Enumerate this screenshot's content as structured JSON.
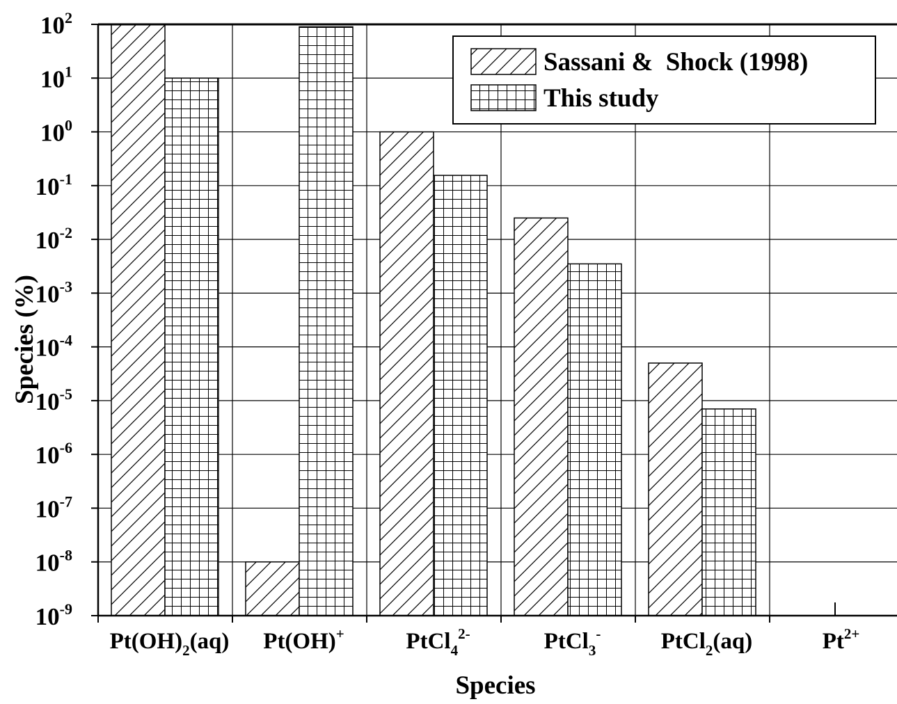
{
  "chart_data": {
    "type": "bar",
    "xlabel": "Species",
    "ylabel": "Species (%)",
    "yscale": "log",
    "ylim": [
      1e-09,
      100
    ],
    "grid": true,
    "legend_position": "top-right",
    "categories": [
      {
        "base": "Pt(OH)",
        "sub": "2",
        "sup": "",
        "tail": "(aq)"
      },
      {
        "base": "Pt(OH)",
        "sub": "",
        "sup": "+",
        "tail": ""
      },
      {
        "base": "PtCl",
        "sub": "4",
        "sup": "2-",
        "tail": ""
      },
      {
        "base": "PtCl",
        "sub": "3",
        "sup": "-",
        "tail": ""
      },
      {
        "base": "PtCl",
        "sub": "2",
        "sup": "",
        "tail": "(aq)"
      },
      {
        "base": "Pt",
        "sub": "",
        "sup": "2+",
        "tail": ""
      }
    ],
    "series": [
      {
        "name": "Sassani &  Shock (1998)",
        "pattern": "diagonal-hatch",
        "values": [
          100,
          1e-08,
          1,
          0.025,
          5e-05,
          null
        ]
      },
      {
        "name": "This study",
        "pattern": "grid-hatch",
        "values": [
          10,
          90,
          0.155,
          0.0035,
          7e-06,
          null
        ]
      }
    ],
    "yticks": [
      {
        "base": "10",
        "exp": "2"
      },
      {
        "base": "10",
        "exp": "1"
      },
      {
        "base": "10",
        "exp": "0"
      },
      {
        "base": "10",
        "exp": "-1"
      },
      {
        "base": "10",
        "exp": "-2"
      },
      {
        "base": "10",
        "exp": "-3"
      },
      {
        "base": "10",
        "exp": "-4"
      },
      {
        "base": "10",
        "exp": "-5"
      },
      {
        "base": "10",
        "exp": "-6"
      },
      {
        "base": "10",
        "exp": "-7"
      },
      {
        "base": "10",
        "exp": "-8"
      },
      {
        "base": "10",
        "exp": "-9"
      }
    ]
  }
}
